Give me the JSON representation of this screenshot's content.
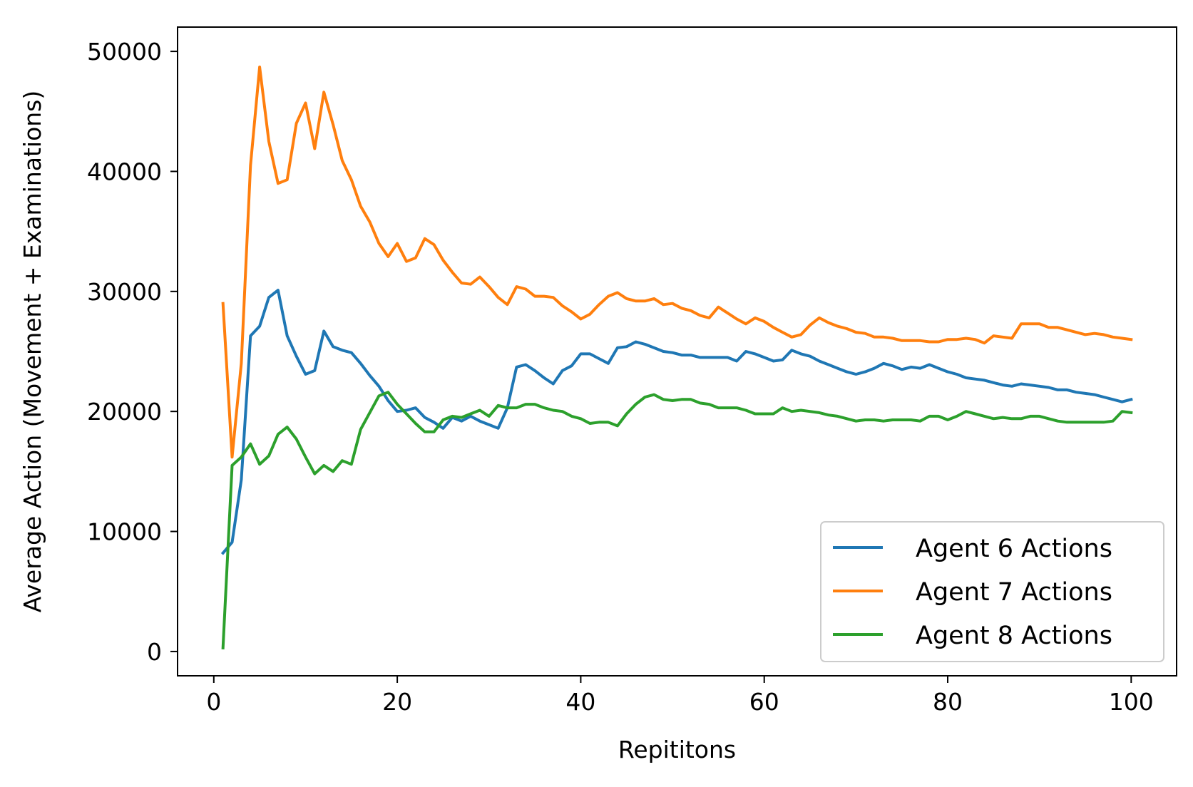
{
  "chart_data": {
    "type": "line",
    "title": "",
    "xlabel": "Repititons",
    "ylabel": "Average Action (Movement + Examinations)",
    "xlim": [
      -3.95,
      104.95
    ],
    "ylim": [
      -2025,
      52025
    ],
    "xticks": [
      0,
      20,
      40,
      60,
      80,
      100
    ],
    "yticks": [
      0,
      10000,
      20000,
      30000,
      40000,
      50000
    ],
    "xtick_labels": [
      "0",
      "20",
      "40",
      "60",
      "80",
      "100"
    ],
    "ytick_labels": [
      "0",
      "10000",
      "20000",
      "30000",
      "40000",
      "50000"
    ],
    "grid": false,
    "legend_position": "lower right",
    "series": [
      {
        "name": "Agent 6 Actions",
        "color": "#1f77b4",
        "x": [
          1,
          2,
          3,
          4,
          5,
          6,
          7,
          8,
          9,
          10,
          11,
          12,
          13,
          14,
          15,
          16,
          17,
          18,
          19,
          20,
          21,
          22,
          23,
          24,
          25,
          26,
          27,
          28,
          29,
          30,
          31,
          32,
          33,
          34,
          35,
          36,
          37,
          38,
          39,
          40,
          41,
          42,
          43,
          44,
          45,
          46,
          47,
          48,
          49,
          50,
          51,
          52,
          53,
          54,
          55,
          56,
          57,
          58,
          59,
          60,
          61,
          62,
          63,
          64,
          65,
          66,
          67,
          68,
          69,
          70,
          71,
          72,
          73,
          74,
          75,
          76,
          77,
          78,
          79,
          80,
          81,
          82,
          83,
          84,
          85,
          86,
          87,
          88,
          89,
          90,
          91,
          92,
          93,
          94,
          95,
          96,
          97,
          98,
          99,
          100
        ],
        "y": [
          8200,
          9100,
          14300,
          26300,
          27100,
          29500,
          30100,
          26300,
          24600,
          23100,
          23400,
          26700,
          25400,
          25100,
          24900,
          24000,
          23000,
          22100,
          20900,
          20000,
          20100,
          20300,
          19500,
          19100,
          18600,
          19500,
          19200,
          19600,
          19200,
          18900,
          18600,
          20300,
          23700,
          23900,
          23400,
          22800,
          22300,
          23400,
          23800,
          24800,
          24800,
          24400,
          24000,
          25300,
          25400,
          25800,
          25600,
          25300,
          25000,
          24900,
          24700,
          24700,
          24500,
          24500,
          24500,
          24500,
          24200,
          25000,
          24800,
          24500,
          24200,
          24300,
          25100,
          24800,
          24600,
          24200,
          23900,
          23600,
          23300,
          23100,
          23300,
          23600,
          24000,
          23800,
          23500,
          23700,
          23600,
          23900,
          23600,
          23300,
          23100,
          22800,
          22700,
          22600,
          22400,
          22200,
          22100,
          22300,
          22200,
          22100,
          22000,
          21800,
          21800,
          21600,
          21500,
          21400,
          21200,
          21000,
          20800,
          21000
        ]
      },
      {
        "name": "Agent 7 Actions",
        "color": "#ff7f0e",
        "x": [
          1,
          2,
          3,
          4,
          5,
          6,
          7,
          8,
          9,
          10,
          11,
          12,
          13,
          14,
          15,
          16,
          17,
          18,
          19,
          20,
          21,
          22,
          23,
          24,
          25,
          26,
          27,
          28,
          29,
          30,
          31,
          32,
          33,
          34,
          35,
          36,
          37,
          38,
          39,
          40,
          41,
          42,
          43,
          44,
          45,
          46,
          47,
          48,
          49,
          50,
          51,
          52,
          53,
          54,
          55,
          56,
          57,
          58,
          59,
          60,
          61,
          62,
          63,
          64,
          65,
          66,
          67,
          68,
          69,
          70,
          71,
          72,
          73,
          74,
          75,
          76,
          77,
          78,
          79,
          80,
          81,
          82,
          83,
          84,
          85,
          86,
          87,
          88,
          89,
          90,
          91,
          92,
          93,
          94,
          95,
          96,
          97,
          98,
          99,
          100
        ],
        "y": [
          29000,
          16200,
          24000,
          40500,
          48700,
          42500,
          39000,
          39300,
          44000,
          45700,
          41900,
          46600,
          43900,
          40900,
          39300,
          37100,
          35800,
          34000,
          32900,
          34000,
          32500,
          32800,
          34400,
          33900,
          32600,
          31600,
          30700,
          30600,
          31200,
          30400,
          29500,
          28900,
          30400,
          30200,
          29600,
          29600,
          29500,
          28800,
          28300,
          27700,
          28100,
          28900,
          29600,
          29900,
          29400,
          29200,
          29200,
          29400,
          28900,
          29000,
          28600,
          28400,
          28000,
          27800,
          28700,
          28200,
          27700,
          27300,
          27800,
          27500,
          27000,
          26600,
          26200,
          26400,
          27200,
          27800,
          27400,
          27100,
          26900,
          26600,
          26500,
          26200,
          26200,
          26100,
          25900,
          25900,
          25900,
          25800,
          25800,
          26000,
          26000,
          26100,
          26000,
          25700,
          26300,
          26200,
          26100,
          27300,
          27300,
          27300,
          27000,
          27000,
          26800,
          26600,
          26400,
          26500,
          26400,
          26200,
          26100,
          26000
        ]
      },
      {
        "name": "Agent 8 Actions",
        "color": "#2ca02c",
        "x": [
          1,
          2,
          3,
          4,
          5,
          6,
          7,
          8,
          9,
          10,
          11,
          12,
          13,
          14,
          15,
          16,
          17,
          18,
          19,
          20,
          21,
          22,
          23,
          24,
          25,
          26,
          27,
          28,
          29,
          30,
          31,
          32,
          33,
          34,
          35,
          36,
          37,
          38,
          39,
          40,
          41,
          42,
          43,
          44,
          45,
          46,
          47,
          48,
          49,
          50,
          51,
          52,
          53,
          54,
          55,
          56,
          57,
          58,
          59,
          60,
          61,
          62,
          63,
          64,
          65,
          66,
          67,
          68,
          69,
          70,
          71,
          72,
          73,
          74,
          75,
          76,
          77,
          78,
          79,
          80,
          81,
          82,
          83,
          84,
          85,
          86,
          87,
          88,
          89,
          90,
          91,
          92,
          93,
          94,
          95,
          96,
          97,
          98,
          99,
          100
        ],
        "y": [
          300,
          15500,
          16200,
          17300,
          15600,
          16300,
          18100,
          18700,
          17700,
          16200,
          14800,
          15500,
          15000,
          15900,
          15600,
          18500,
          19900,
          21300,
          21600,
          20600,
          19800,
          19000,
          18300,
          18300,
          19300,
          19600,
          19500,
          19800,
          20100,
          19600,
          20500,
          20300,
          20300,
          20600,
          20600,
          20300,
          20100,
          20000,
          19600,
          19400,
          19000,
          19100,
          19100,
          18800,
          19800,
          20600,
          21200,
          21400,
          21000,
          20900,
          21000,
          21000,
          20700,
          20600,
          20300,
          20300,
          20300,
          20100,
          19800,
          19800,
          19800,
          20300,
          20000,
          20100,
          20000,
          19900,
          19700,
          19600,
          19400,
          19200,
          19300,
          19300,
          19200,
          19300,
          19300,
          19300,
          19200,
          19600,
          19600,
          19300,
          19600,
          20000,
          19800,
          19600,
          19400,
          19500,
          19400,
          19400,
          19600,
          19600,
          19400,
          19200,
          19100,
          19100,
          19100,
          19100,
          19100,
          19200,
          20000,
          19900
        ]
      }
    ]
  }
}
